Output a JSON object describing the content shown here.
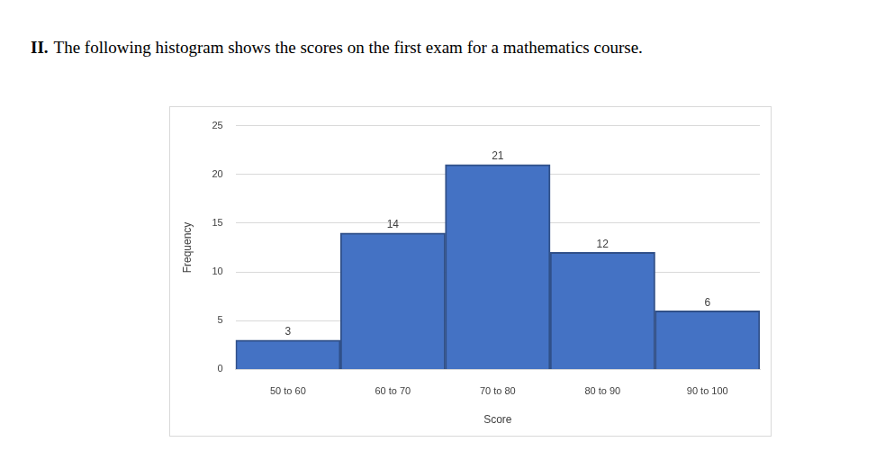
{
  "heading": {
    "number": "II.",
    "text": "The following histogram shows the scores on the first exam for a mathematics course."
  },
  "chart_data": {
    "type": "bar",
    "categories": [
      "50 to 60",
      "60 to 70",
      "70 to 80",
      "80 to 90",
      "90 to 100"
    ],
    "values": [
      3,
      14,
      21,
      12,
      6
    ],
    "color": "#4472c4",
    "x_label": "Score",
    "y_label": "Frequency",
    "ylim": [
      0,
      25
    ],
    "yticks": [
      0,
      5,
      10,
      15,
      20,
      25
    ],
    "grid": true,
    "data_labels": true
  }
}
